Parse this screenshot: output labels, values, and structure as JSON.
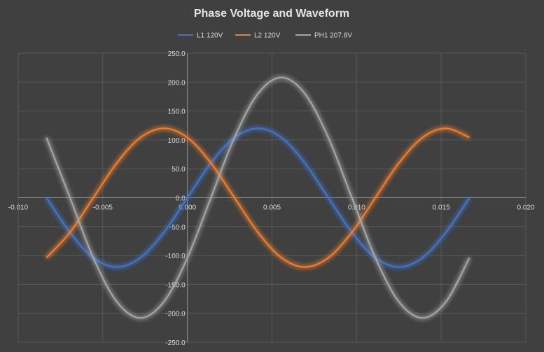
{
  "chart_data": {
    "type": "scatter",
    "mode": "smooth-lines",
    "title": "Phase Voltage and Waveform",
    "xlabel": "",
    "ylabel": "",
    "xlim": [
      -0.01,
      0.02
    ],
    "ylim": [
      -250,
      250
    ],
    "x_ticks": [
      "-0.010",
      "-0.005",
      "0.000",
      "0.005",
      "0.010",
      "0.015",
      "0.020"
    ],
    "y_ticks": [
      "250.0",
      "200.0",
      "150.0",
      "100.0",
      "50.0",
      "0.0",
      "-50.0",
      "-100.0",
      "-150.0",
      "-200.0",
      "-250.0"
    ],
    "grid": true,
    "legend_position": "top",
    "background": "#404040",
    "series": [
      {
        "name": "L1 120V",
        "color": "#4472c4",
        "x": [
          -0.00833,
          -0.00694,
          -0.00556,
          -0.00417,
          -0.00278,
          -0.00139,
          0.0,
          0.00139,
          0.00278,
          0.00417,
          0.00556,
          0.00694,
          0.00833,
          0.00972,
          0.01111,
          0.0125,
          0.01389,
          0.01528,
          0.01667
        ],
        "y": [
          0,
          -60,
          -104,
          -120,
          -104,
          -60,
          0,
          60,
          104,
          120,
          104,
          60,
          0,
          -60,
          -104,
          -120,
          -104,
          -60,
          0
        ]
      },
      {
        "name": "L2 120V",
        "color": "#ed7d31",
        "x": [
          -0.00833,
          -0.00694,
          -0.00556,
          -0.00417,
          -0.00278,
          -0.00139,
          0.0,
          0.00139,
          0.00278,
          0.00417,
          0.00556,
          0.00694,
          0.00833,
          0.00972,
          0.01111,
          0.0125,
          0.01389,
          0.01528,
          0.01667
        ],
        "y": [
          -104,
          -60,
          0,
          60,
          104,
          120,
          104,
          60,
          0,
          -60,
          -104,
          -120,
          -104,
          -60,
          0,
          60,
          104,
          120,
          104
        ]
      },
      {
        "name": "PH1 207.8V",
        "color": "#a5a5a5",
        "x": [
          -0.00833,
          -0.00694,
          -0.00556,
          -0.00417,
          -0.00278,
          -0.00139,
          0.0,
          0.00139,
          0.00278,
          0.00417,
          0.00556,
          0.00694,
          0.00833,
          0.00972,
          0.01111,
          0.0125,
          0.01389,
          0.01528,
          0.01667
        ],
        "y": [
          104,
          0,
          -104,
          -180,
          -208,
          -180,
          -104,
          0,
          104,
          180,
          208,
          180,
          104,
          0,
          -104,
          -180,
          -208,
          -180,
          -104
        ]
      }
    ]
  }
}
